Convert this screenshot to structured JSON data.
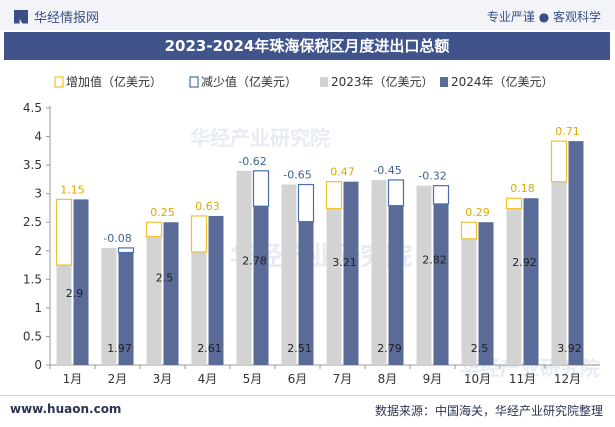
{
  "header": {
    "brand": "华经情报网",
    "slogan": "专业严谨 ● 客观科学"
  },
  "footer": {
    "website": "www.huaon.com",
    "source": "数据来源：中国海关，华经产业研究院整理"
  },
  "watermark": "华经产业研究院",
  "colors": {
    "increase": "#f2c12e",
    "decrease": "#4a6ea9",
    "y2023": "#d3d3d3",
    "y2024": "#5a6b98",
    "title_bg": "#40548b"
  },
  "chart_data": {
    "type": "bar",
    "title": "2023-2024年珠海保税区月度进出口总额",
    "legend": [
      "增加值（亿美元）",
      "减少值（亿美元）",
      "2023年（亿美元）",
      "2024年（亿美元）"
    ],
    "legend_position": "top",
    "categories": [
      "1月",
      "2月",
      "3月",
      "4月",
      "5月",
      "6月",
      "7月",
      "8月",
      "9月",
      "10月",
      "11月",
      "12月"
    ],
    "series": [
      {
        "name": "2023年（亿美元）",
        "values": [
          1.75,
          2.05,
          2.25,
          1.98,
          3.4,
          3.16,
          2.74,
          3.24,
          3.14,
          2.21,
          2.74,
          3.21
        ]
      },
      {
        "name": "2024年（亿美元）",
        "values": [
          2.9,
          1.97,
          2.5,
          2.61,
          2.78,
          2.51,
          3.21,
          2.79,
          2.82,
          2.5,
          2.92,
          3.92
        ]
      }
    ],
    "change_labels": [
      "1.15",
      "-0.08",
      "0.25",
      "0.63",
      "-0.62",
      "-0.65",
      "0.47",
      "-0.45",
      "-0.32",
      "0.29",
      "0.18",
      "0.71"
    ],
    "value_labels_2024": [
      "2.9",
      "1.97",
      "2.5",
      "2.61",
      "2.78",
      "2.51",
      "3.21",
      "2.79",
      "2.82",
      "2.5",
      "2.92",
      "3.92"
    ],
    "y_ticks": [
      "0",
      "0.5",
      "1",
      "1.5",
      "2",
      "2.5",
      "3",
      "3.5",
      "4",
      "4.5"
    ],
    "ylim": [
      0,
      4.5
    ],
    "grid": false
  }
}
